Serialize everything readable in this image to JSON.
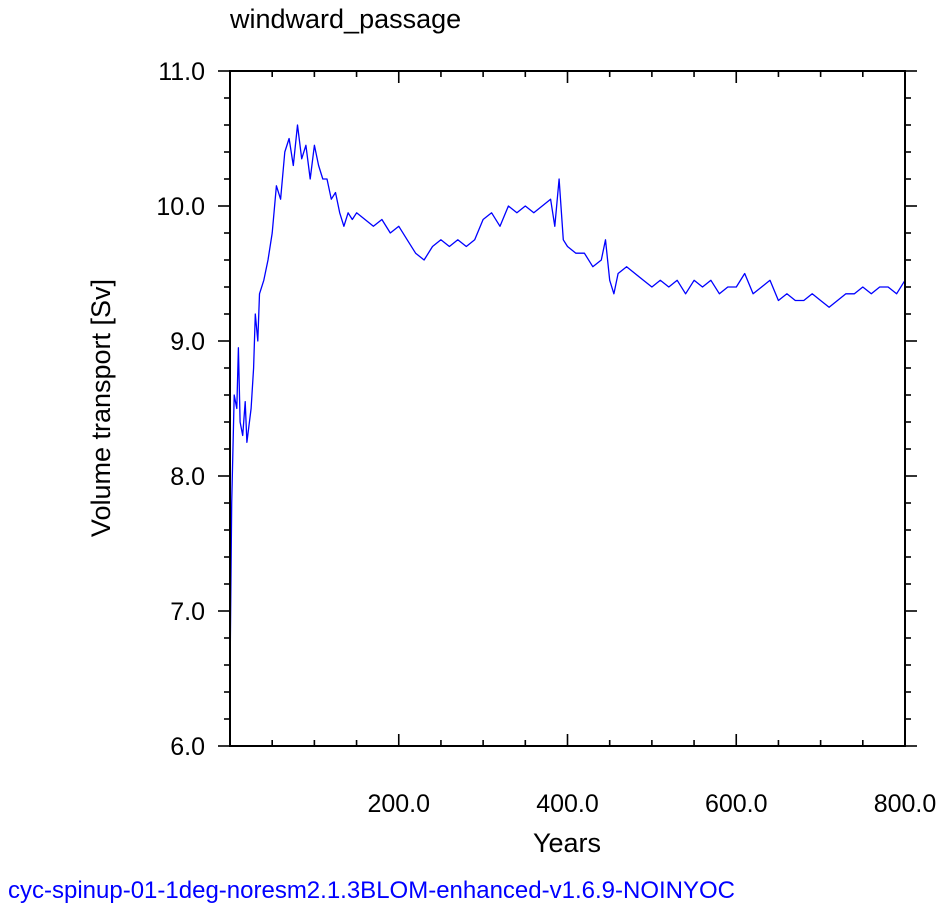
{
  "chart_data": {
    "type": "line",
    "title": "windward_passage",
    "xlabel": "Years",
    "ylabel": "Volume transport [Sv]",
    "xlim": [
      0,
      800
    ],
    "ylim": [
      6.0,
      11.0
    ],
    "xticks": [
      200,
      400,
      600,
      800
    ],
    "xtick_labels": [
      "200.0",
      "400.0",
      "600.0",
      "800.0"
    ],
    "yticks": [
      6,
      7,
      8,
      9,
      10,
      11
    ],
    "ytick_labels": [
      "6.0",
      "7.0",
      "8.0",
      "9.0",
      "10.0",
      "11.0"
    ],
    "x_minor_step": 50,
    "y_minor_step": 0.2,
    "grid": false,
    "series": [
      {
        "color": "#0000ff",
        "x": [
          0,
          2,
          5,
          8,
          10,
          12,
          15,
          18,
          20,
          25,
          28,
          30,
          33,
          35,
          40,
          45,
          50,
          55,
          60,
          65,
          70,
          75,
          80,
          85,
          90,
          95,
          100,
          105,
          110,
          115,
          120,
          125,
          130,
          135,
          140,
          145,
          150,
          160,
          170,
          180,
          190,
          200,
          210,
          220,
          230,
          240,
          250,
          260,
          270,
          280,
          290,
          300,
          310,
          320,
          330,
          340,
          350,
          360,
          370,
          380,
          385,
          390,
          395,
          400,
          410,
          420,
          430,
          440,
          445,
          450,
          455,
          460,
          470,
          480,
          490,
          500,
          510,
          520,
          530,
          540,
          550,
          560,
          570,
          580,
          590,
          600,
          610,
          620,
          630,
          640,
          650,
          660,
          670,
          680,
          690,
          700,
          710,
          720,
          730,
          740,
          750,
          760,
          770,
          780,
          790,
          800
        ],
        "y": [
          6.5,
          7.8,
          8.6,
          8.5,
          8.95,
          8.4,
          8.3,
          8.55,
          8.25,
          8.5,
          8.8,
          9.2,
          9.0,
          9.35,
          9.45,
          9.6,
          9.8,
          10.15,
          10.05,
          10.4,
          10.5,
          10.3,
          10.6,
          10.35,
          10.45,
          10.2,
          10.45,
          10.3,
          10.2,
          10.2,
          10.05,
          10.1,
          9.95,
          9.85,
          9.95,
          9.9,
          9.95,
          9.9,
          9.85,
          9.9,
          9.8,
          9.85,
          9.75,
          9.65,
          9.6,
          9.7,
          9.75,
          9.7,
          9.75,
          9.7,
          9.75,
          9.9,
          9.95,
          9.85,
          10.0,
          9.95,
          10.0,
          9.95,
          10.0,
          10.05,
          9.85,
          10.2,
          9.75,
          9.7,
          9.65,
          9.65,
          9.55,
          9.6,
          9.75,
          9.45,
          9.35,
          9.5,
          9.55,
          9.5,
          9.45,
          9.4,
          9.45,
          9.4,
          9.45,
          9.35,
          9.45,
          9.4,
          9.45,
          9.35,
          9.4,
          9.4,
          9.5,
          9.35,
          9.4,
          9.45,
          9.3,
          9.35,
          9.3,
          9.3,
          9.35,
          9.3,
          9.25,
          9.3,
          9.35,
          9.35,
          9.4,
          9.35,
          9.4,
          9.4,
          9.35,
          9.45
        ]
      }
    ]
  },
  "footer": {
    "caption": "cyc-spinup-01-1deg-noresm2.1.3BLOM-enhanced-v1.6.9-NOINYOC",
    "caption_color": "#0000ff"
  }
}
